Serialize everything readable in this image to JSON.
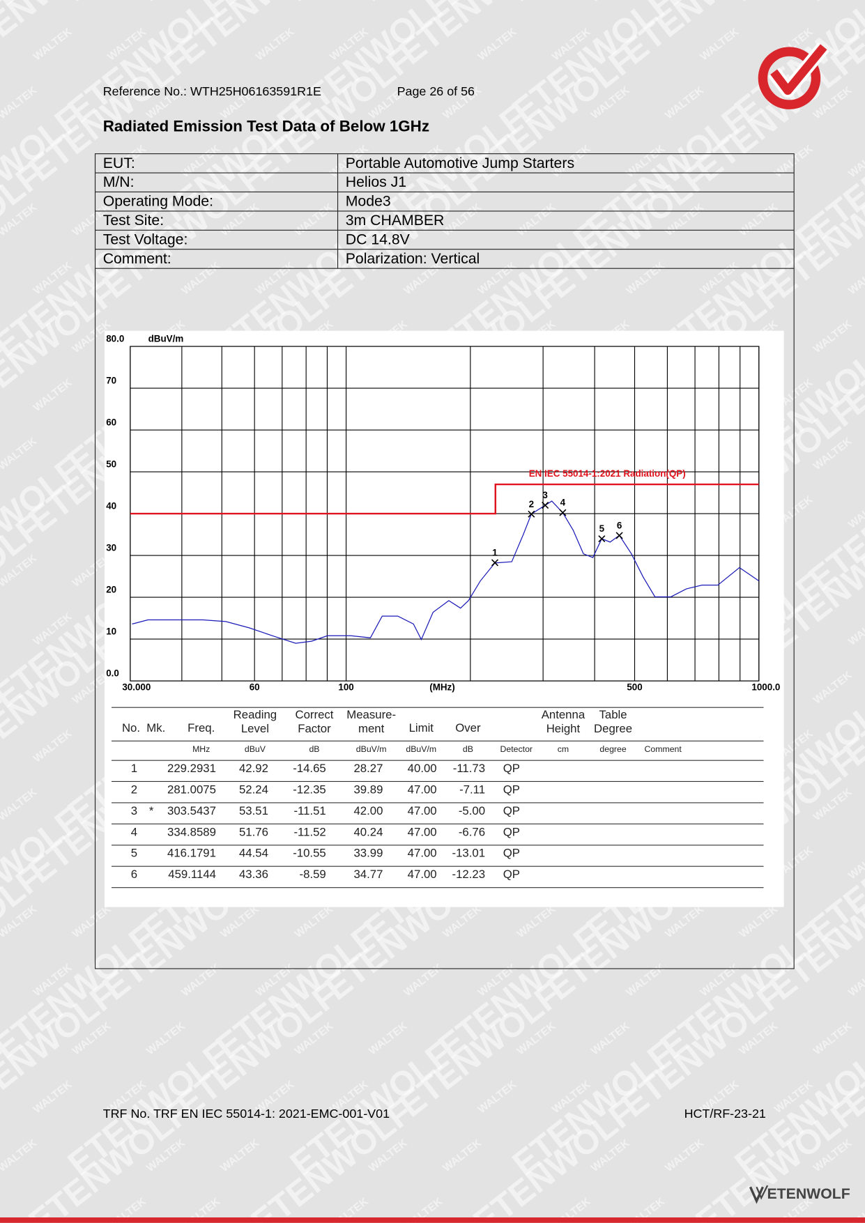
{
  "watermark": [
    "WALTEK",
    "ETENWOLF"
  ],
  "header": {
    "reference": "Reference No.: WTH25H06163591R1E",
    "page": "Page 26 of 56",
    "title": "Radiated Emission Test Data of Below 1GHz"
  },
  "info": {
    "rows": [
      [
        "EUT:",
        "Portable Automotive Jump Starters"
      ],
      [
        "M/N:",
        "Helios J1"
      ],
      [
        "Operating Mode:",
        "Mode3"
      ],
      [
        "Test Site:",
        "3m CHAMBER"
      ],
      [
        "Test Voltage:",
        "DC 14.8V"
      ],
      [
        "Comment:",
        "Polarization: Vertical"
      ]
    ]
  },
  "chart_data": {
    "type": "line",
    "y_label": "dBuV/m",
    "x_label": "(MHz)",
    "log_x": true,
    "xlim": [
      30,
      1000
    ],
    "ylim": [
      0,
      80
    ],
    "xticks": [
      {
        "value": 30,
        "label": "30.000"
      },
      60,
      100,
      500,
      {
        "value": 1000,
        "label": "1000.0"
      }
    ],
    "xgrid": [
      30,
      40,
      50,
      60,
      70,
      80,
      90,
      100,
      200,
      300,
      400,
      500,
      600,
      700,
      800,
      900,
      1000
    ],
    "yticks": [
      {
        "value": 0,
        "label": "0.0"
      },
      10,
      20,
      30,
      40,
      50,
      60,
      70,
      {
        "value": 80,
        "label": "80.0"
      }
    ],
    "grid": true,
    "series": [
      {
        "color": "#1a1ab8",
        "x": [
          30.3,
          33.1,
          37.8,
          44.9,
          51.1,
          58.2,
          66.3,
          75.5,
          82.5,
          90.1,
          102.6,
          114.5,
          122.3,
          133.4,
          145.6,
          152.1,
          162.4,
          177.3,
          189.3,
          197.9,
          211.4,
          229.3,
          251.9,
          268.9,
          281,
          303.5,
          315,
          334.9,
          355,
          375.7,
          396,
          416.2,
          436,
          459.1,
          491,
          524.6,
          560,
          612,
          667,
          728,
          795,
          897,
          1000
        ],
        "values": [
          13.6,
          14.6,
          14.6,
          14.6,
          14.2,
          12.7,
          10.8,
          9.0,
          9.5,
          10.8,
          10.8,
          10.3,
          15.5,
          15.5,
          13.6,
          9.9,
          16.4,
          19.2,
          17.4,
          19.2,
          23.9,
          28.2,
          28.5,
          35.1,
          39.9,
          42.0,
          43.0,
          40.2,
          36.0,
          30.4,
          29.5,
          34.0,
          33.2,
          34.8,
          30.4,
          24.8,
          20.1,
          20.1,
          22.0,
          22.9,
          22.9,
          27.1,
          23.9
        ]
      },
      {
        "name": "EN IEC 55014-1:2021 Radiation(QP)",
        "color": "#e0141e",
        "x": [
          30,
          230,
          230,
          1000
        ],
        "values": [
          40,
          40,
          47,
          47
        ]
      }
    ]
  },
  "results": {
    "columns": [
      {
        "name": [
          "No."
        ]
      },
      {
        "name": [
          "Mk."
        ]
      },
      {
        "name": [
          "Freq."
        ],
        "unit": "MHz"
      },
      {
        "name": [
          "Reading",
          "Level"
        ],
        "unit": "dBuV"
      },
      {
        "name": [
          "Correct",
          "Factor"
        ],
        "unit": "dB"
      },
      {
        "name": [
          "Measure-",
          "ment"
        ],
        "unit": "dBuV/m"
      },
      {
        "name": [
          "Limit"
        ],
        "unit": "dBuV/m"
      },
      {
        "name": [
          "Over"
        ],
        "unit": "dB"
      },
      {
        "unit": "Detector"
      },
      {
        "name": [
          "Antenna",
          "Height"
        ],
        "unit": "cm"
      },
      {
        "name": [
          "Table",
          "Degree"
        ],
        "unit": "degree"
      },
      {
        "unit": "Comment"
      }
    ],
    "rows": [
      {
        "no": "1",
        "freq": "229.2931",
        "reading": "42.92",
        "factor": "-14.65",
        "measurement": "28.27",
        "limit": "40.00",
        "over": "-11.73",
        "detector": "QP"
      },
      {
        "no": "2",
        "freq": "281.0075",
        "reading": "52.24",
        "factor": "-12.35",
        "measurement": "39.89",
        "limit": "47.00",
        "over": "-7.11",
        "detector": "QP"
      },
      {
        "no": "3",
        "mk": "*",
        "freq": "303.5437",
        "reading": "53.51",
        "factor": "-11.51",
        "measurement": "42.00",
        "limit": "47.00",
        "over": "-5.00",
        "detector": "QP"
      },
      {
        "no": "4",
        "freq": "334.8589",
        "reading": "51.76",
        "factor": "-11.52",
        "measurement": "40.24",
        "limit": "47.00",
        "over": "-6.76",
        "detector": "QP"
      },
      {
        "no": "5",
        "freq": "416.1791",
        "reading": "44.54",
        "factor": "-10.55",
        "measurement": "33.99",
        "limit": "47.00",
        "over": "-13.01",
        "detector": "QP"
      },
      {
        "no": "6",
        "freq": "459.1144",
        "reading": "43.36",
        "factor": "-8.59",
        "measurement": "34.77",
        "limit": "47.00",
        "over": "-12.23",
        "detector": "QP"
      }
    ]
  },
  "footer": {
    "trf": "TRF No. TRF EN IEC 55014-1: 2021-EMC-001-V01",
    "code": "HCT/RF-23-21",
    "brand": "ETENWOLF"
  }
}
